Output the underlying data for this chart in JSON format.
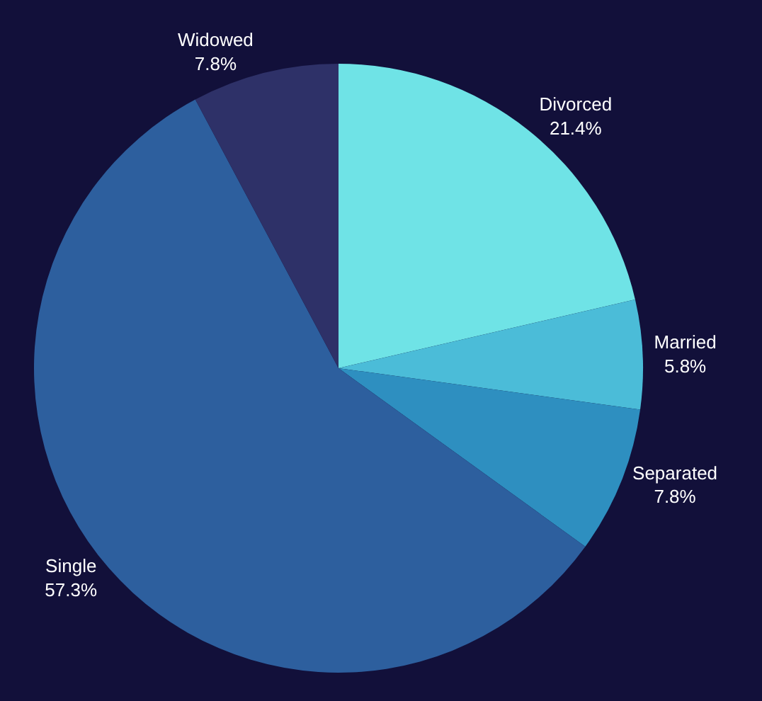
{
  "chart_data": {
    "type": "pie",
    "categories": [
      "Divorced",
      "Married",
      "Separated",
      "Single",
      "Widowed"
    ],
    "values": [
      21.4,
      5.8,
      7.8,
      57.3,
      7.8
    ],
    "value_labels": [
      "21.4%",
      "5.8%",
      "7.8%",
      "57.3%",
      "7.8%"
    ],
    "colors": [
      "#6fe3e6",
      "#4bbcd8",
      "#2e8fc0",
      "#2d5f9e",
      "#2e3168"
    ],
    "legend": false
  }
}
